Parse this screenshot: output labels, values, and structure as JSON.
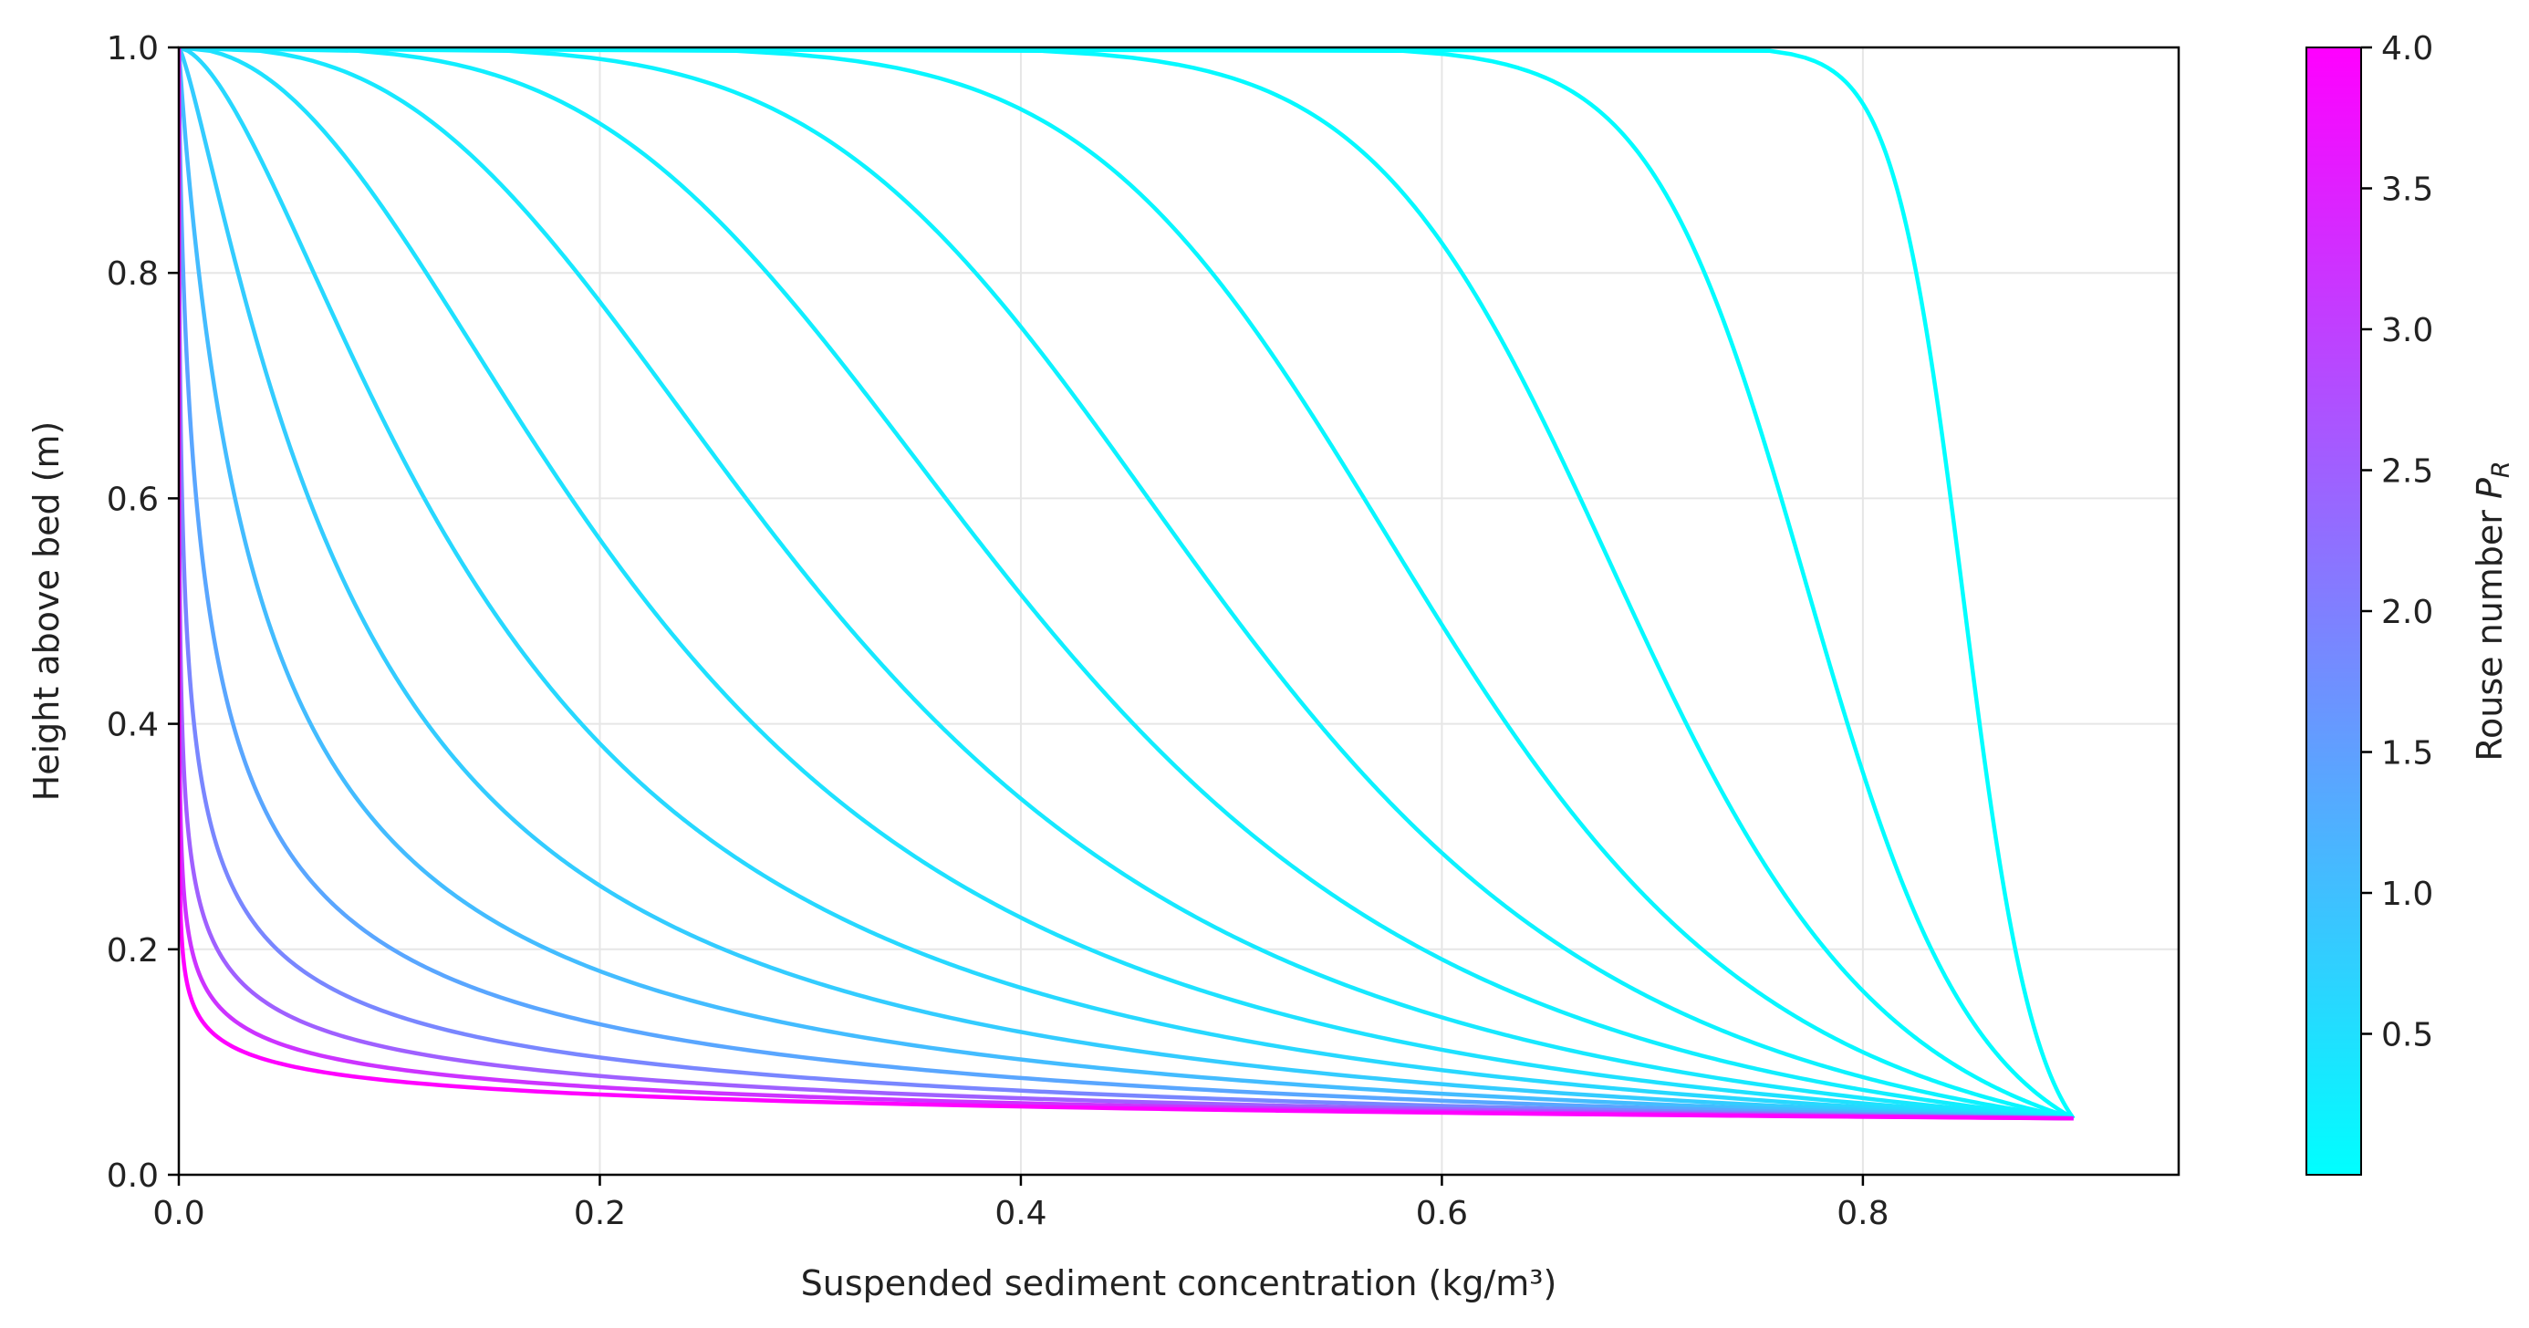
{
  "chart_data": {
    "type": "line",
    "title": "",
    "xlabel": "Suspended sediment concentration (kg/m³)",
    "ylabel": "Height above bed (m)",
    "xlim": [
      0,
      0.95
    ],
    "ylim": [
      0,
      1.0
    ],
    "xticks": [
      "0.0",
      "0.2",
      "0.4",
      "0.6",
      "0.8"
    ],
    "yticks": [
      "0.0",
      "0.2",
      "0.4",
      "0.6",
      "0.8",
      "1.0"
    ],
    "grid": true,
    "rouse_formula": {
      "reference_concentration": 0.9,
      "reference_height": 0.05,
      "flow_depth": 1.0
    },
    "rouse_numbers": [
      0.02,
      0.05,
      0.09,
      0.14,
      0.2,
      0.27,
      0.36,
      0.47,
      0.61,
      0.8,
      1.05,
      1.4,
      1.9,
      2.5,
      3.2,
      4.0
    ],
    "colorbar": {
      "label_prefix": "Rouse number ",
      "label_symbol": "P",
      "label_subscript": "R",
      "min": 0.0,
      "max": 4.0,
      "ticks": [
        "0.5",
        "1.0",
        "1.5",
        "2.0",
        "2.5",
        "3.0",
        "3.5",
        "4.0"
      ],
      "colormap": "cool",
      "color_start": "#00ffff",
      "color_end": "#ff00ff"
    }
  }
}
